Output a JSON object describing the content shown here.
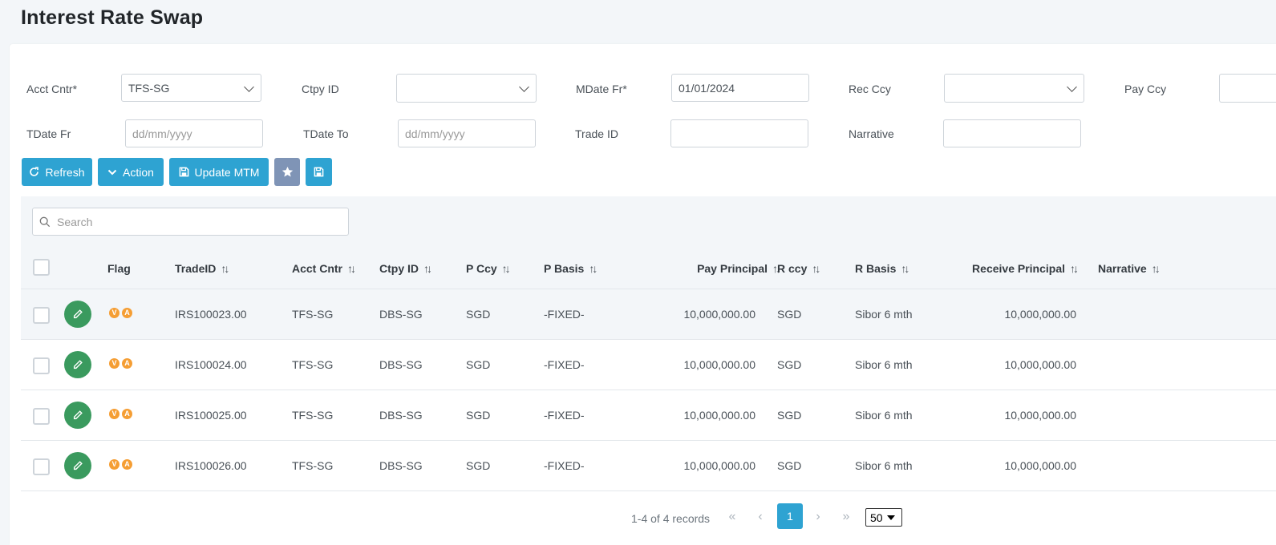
{
  "page": {
    "title": "Interest Rate Swap"
  },
  "filters": {
    "acct_cntr": {
      "label": "Acct Cntr*",
      "value": "TFS-SG"
    },
    "ctpy_id": {
      "label": "Ctpy ID",
      "value": ""
    },
    "mdate_fr": {
      "label": "MDate Fr*",
      "value": "01/01/2024"
    },
    "rec_ccy": {
      "label": "Rec Ccy",
      "value": ""
    },
    "pay_ccy": {
      "label": "Pay Ccy",
      "value": ""
    },
    "tdate_fr": {
      "label": "TDate Fr",
      "placeholder": "dd/mm/yyyy"
    },
    "tdate_to": {
      "label": "TDate To",
      "placeholder": "dd/mm/yyyy"
    },
    "trade_id": {
      "label": "Trade ID",
      "value": ""
    },
    "narrative": {
      "label": "Narrative",
      "value": ""
    }
  },
  "toolbar": {
    "refresh_label": "Refresh",
    "action_label": "Action",
    "update_mtm_label": "Update MTM"
  },
  "search": {
    "placeholder": "Search"
  },
  "table": {
    "headers": {
      "flag": "Flag",
      "trade_id": "TradeID",
      "acct_cntr": "Acct Cntr",
      "ctpy_id": "Ctpy ID",
      "p_ccy": "P Ccy",
      "p_basis": "P Basis",
      "pay_principal": "Pay Principal",
      "r_ccy": "R ccy",
      "r_basis": "R Basis",
      "receive_principal": "Receive Principal",
      "narrative": "Narrative"
    },
    "sort_glyph": "↑↓",
    "flag_badges": [
      "V",
      "A"
    ],
    "rows": [
      {
        "trade_id": "IRS100023.00",
        "acct_cntr": "TFS-SG",
        "ctpy_id": "DBS-SG",
        "p_ccy": "SGD",
        "p_basis": "-FIXED-",
        "pay_principal": "10,000,000.00",
        "r_ccy": "SGD",
        "r_basis": "Sibor 6 mth",
        "receive_principal": "10,000,000.00",
        "narrative": ""
      },
      {
        "trade_id": "IRS100024.00",
        "acct_cntr": "TFS-SG",
        "ctpy_id": "DBS-SG",
        "p_ccy": "SGD",
        "p_basis": "-FIXED-",
        "pay_principal": "10,000,000.00",
        "r_ccy": "SGD",
        "r_basis": "Sibor 6 mth",
        "receive_principal": "10,000,000.00",
        "narrative": ""
      },
      {
        "trade_id": "IRS100025.00",
        "acct_cntr": "TFS-SG",
        "ctpy_id": "DBS-SG",
        "p_ccy": "SGD",
        "p_basis": "-FIXED-",
        "pay_principal": "10,000,000.00",
        "r_ccy": "SGD",
        "r_basis": "Sibor 6 mth",
        "receive_principal": "10,000,000.00",
        "narrative": ""
      },
      {
        "trade_id": "IRS100026.00",
        "acct_cntr": "TFS-SG",
        "ctpy_id": "DBS-SG",
        "p_ccy": "SGD",
        "p_basis": "-FIXED-",
        "pay_principal": "10,000,000.00",
        "r_ccy": "SGD",
        "r_basis": "Sibor 6 mth",
        "receive_principal": "10,000,000.00",
        "narrative": ""
      }
    ]
  },
  "pagination": {
    "info": "1-4 of 4 records",
    "first_icon": "«",
    "prev_icon": "‹",
    "current_page": "1",
    "next_icon": "›",
    "last_icon": "»",
    "rows_per_page": "50"
  },
  "colors": {
    "primary": "#2ea3d2",
    "edit_green": "#3a9a5e",
    "flag_orange": "#f59e34",
    "favorite_grey": "#7f94b6"
  },
  "icons": [
    "refresh-icon",
    "chevron-down-icon",
    "save-icon",
    "star-icon",
    "search-icon",
    "pencil-icon",
    "sort-icon"
  ]
}
